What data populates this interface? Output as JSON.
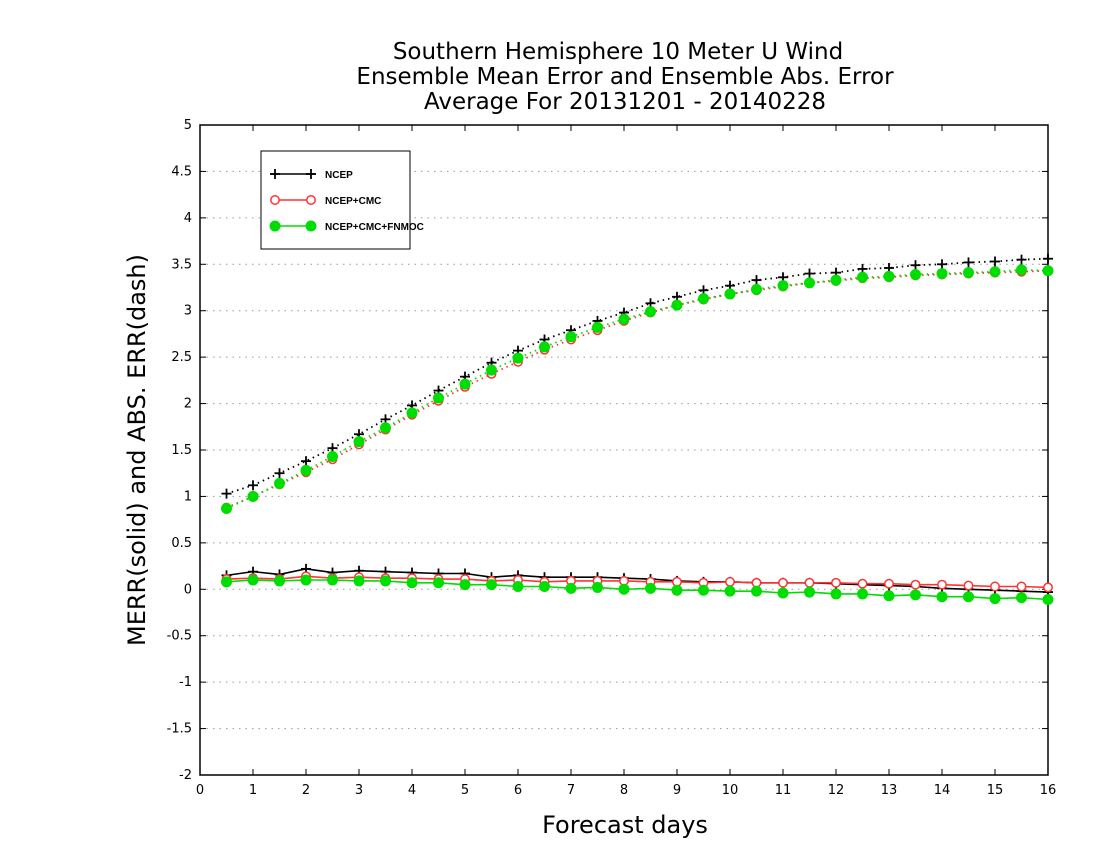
{
  "chart_data": {
    "type": "line",
    "title": [
      "Southern Hemisphere 10 Meter U Wind",
      "Ensemble Mean Error and Ensemble Abs. Error",
      "Average For 20131201 - 20140228"
    ],
    "xlabel": "Forecast days",
    "ylabel": "MERR(solid) and ABS. ERR(dash)",
    "xlim": [
      0,
      16
    ],
    "ylim": [
      -2,
      5
    ],
    "x_ticks": [
      "0",
      "1",
      "2",
      "3",
      "4",
      "5",
      "6",
      "7",
      "8",
      "9",
      "10",
      "11",
      "12",
      "13",
      "14",
      "15",
      "16"
    ],
    "y_ticks": [
      "5",
      "4.5",
      "4",
      "3.5",
      "3",
      "2.5",
      "2",
      "1.5",
      "1",
      "0.5",
      "0",
      "-0.5",
      "-1",
      "-1.5",
      "-2"
    ],
    "grid": "horizontal dotted",
    "legend_position": "top-left",
    "x": [
      0.5,
      1,
      1.5,
      2,
      2.5,
      3,
      3.5,
      4,
      4.5,
      5,
      5.5,
      6,
      6.5,
      7,
      7.5,
      8,
      8.5,
      9,
      9.5,
      10,
      10.5,
      11,
      11.5,
      12,
      12.5,
      13,
      13.5,
      14,
      14.5,
      15,
      15.5,
      16
    ],
    "series": [
      {
        "name": "NCEP",
        "color": "#000000",
        "marker": "plus",
        "abs_err": [
          1.03,
          1.12,
          1.25,
          1.38,
          1.52,
          1.67,
          1.83,
          1.98,
          2.14,
          2.29,
          2.44,
          2.57,
          2.69,
          2.79,
          2.89,
          2.98,
          3.08,
          3.15,
          3.22,
          3.27,
          3.33,
          3.36,
          3.4,
          3.41,
          3.45,
          3.46,
          3.49,
          3.5,
          3.52,
          3.53,
          3.55,
          3.56
        ],
        "mean_err": [
          0.15,
          0.19,
          0.16,
          0.22,
          0.18,
          0.2,
          0.19,
          0.18,
          0.17,
          0.17,
          0.13,
          0.15,
          0.13,
          0.13,
          0.13,
          0.12,
          0.11,
          0.09,
          0.08,
          0.08,
          0.07,
          0.07,
          0.07,
          0.06,
          0.05,
          0.04,
          0.03,
          0.01,
          0.0,
          -0.01,
          -0.02,
          -0.03
        ]
      },
      {
        "name": "NCEP+CMC",
        "color": "#ff3333",
        "marker": "circle-open",
        "abs_err": [
          0.88,
          1.0,
          1.13,
          1.26,
          1.4,
          1.56,
          1.72,
          1.88,
          2.03,
          2.18,
          2.32,
          2.45,
          2.58,
          2.69,
          2.79,
          2.89,
          2.98,
          3.06,
          3.12,
          3.18,
          3.22,
          3.26,
          3.3,
          3.32,
          3.35,
          3.36,
          3.38,
          3.39,
          3.4,
          3.41,
          3.42,
          3.43
        ],
        "mean_err": [
          0.11,
          0.12,
          0.11,
          0.14,
          0.12,
          0.13,
          0.12,
          0.12,
          0.11,
          0.11,
          0.09,
          0.1,
          0.08,
          0.09,
          0.09,
          0.09,
          0.08,
          0.08,
          0.07,
          0.08,
          0.07,
          0.07,
          0.07,
          0.07,
          0.06,
          0.06,
          0.05,
          0.05,
          0.04,
          0.03,
          0.03,
          0.02
        ]
      },
      {
        "name": "NCEP+CMC+FNMOC",
        "color": "#00dd00",
        "marker": "circle-filled",
        "abs_err": [
          0.87,
          1.0,
          1.14,
          1.28,
          1.43,
          1.59,
          1.74,
          1.9,
          2.06,
          2.21,
          2.36,
          2.49,
          2.61,
          2.72,
          2.82,
          2.91,
          2.99,
          3.06,
          3.13,
          3.18,
          3.23,
          3.27,
          3.3,
          3.33,
          3.36,
          3.37,
          3.39,
          3.4,
          3.41,
          3.42,
          3.44,
          3.43
        ],
        "mean_err": [
          0.08,
          0.1,
          0.09,
          0.1,
          0.1,
          0.09,
          0.09,
          0.07,
          0.07,
          0.05,
          0.05,
          0.03,
          0.03,
          0.01,
          0.02,
          0.0,
          0.01,
          -0.01,
          -0.01,
          -0.02,
          -0.02,
          -0.04,
          -0.03,
          -0.05,
          -0.05,
          -0.07,
          -0.06,
          -0.08,
          -0.08,
          -0.1,
          -0.09,
          -0.11
        ]
      }
    ]
  }
}
